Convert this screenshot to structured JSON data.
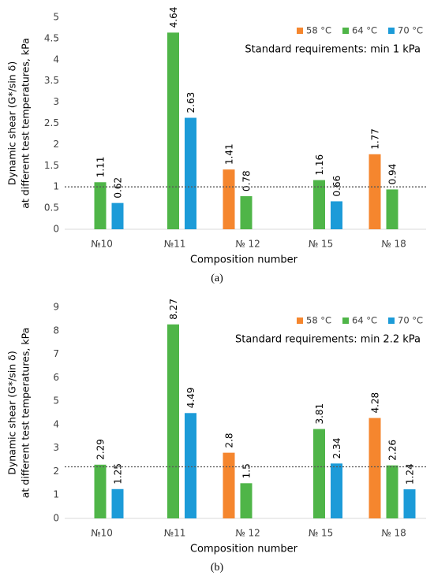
{
  "chart_data": [
    {
      "type": "bar",
      "ylabel": [
        "Dynamic shear (G*/sin δ)",
        "at different test temperatures, kPa"
      ],
      "xlabel": "Composition number",
      "caption": "(a)",
      "annotation": "Standard requirements: min 1 kPa",
      "reference_line": 1,
      "categories": [
        "№10",
        "№11",
        "№ 12",
        "№ 15",
        "№ 18"
      ],
      "series": [
        {
          "name": "58 °C",
          "color": "#f5862e",
          "values": [
            null,
            null,
            1.41,
            null,
            1.77
          ]
        },
        {
          "name": "64 °C",
          "color": "#4fb548",
          "values": [
            1.11,
            4.64,
            0.78,
            1.16,
            0.94
          ]
        },
        {
          "name": "70 °C",
          "color": "#1c9bd8",
          "values": [
            0.62,
            2.63,
            null,
            0.66,
            null
          ]
        }
      ],
      "ylim": [
        0,
        5
      ],
      "yticks": [
        0,
        0.5,
        1,
        1.5,
        2,
        2.5,
        3,
        3.5,
        4,
        4.5,
        5
      ],
      "legend": "top-right"
    },
    {
      "type": "bar",
      "ylabel": [
        "Dynamic shear (G*/sin δ)",
        "at different test temperatures, kPa"
      ],
      "xlabel": "Composition number",
      "caption": "(b)",
      "annotation": "Standard requirements: min 2.2 kPa",
      "reference_line": 2.2,
      "categories": [
        "№10",
        "№11",
        "№ 12",
        "№ 15",
        "№ 18"
      ],
      "series": [
        {
          "name": "58 °C",
          "color": "#f5862e",
          "values": [
            null,
            null,
            2.8,
            null,
            4.28
          ]
        },
        {
          "name": "64 °C",
          "color": "#4fb548",
          "values": [
            2.29,
            8.27,
            1.5,
            3.81,
            2.26
          ]
        },
        {
          "name": "70 °C",
          "color": "#1c9bd8",
          "values": [
            1.25,
            4.49,
            null,
            2.34,
            1.24
          ]
        }
      ],
      "ylim": [
        0,
        9
      ],
      "yticks": [
        0,
        1,
        2,
        3,
        4,
        5,
        6,
        7,
        8,
        9
      ],
      "legend": "top-right"
    }
  ]
}
